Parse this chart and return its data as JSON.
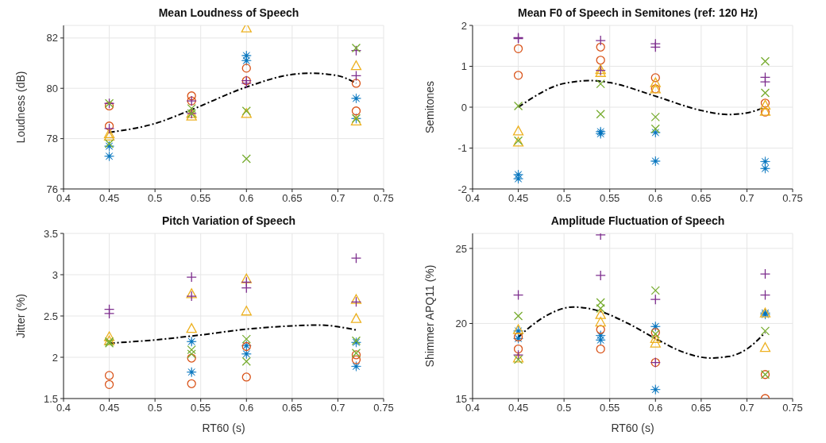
{
  "chart_data": [
    {
      "type": "scatter",
      "title": "Mean Loudness of Speech",
      "ylabel": "Loudness (dB)",
      "xlim": [
        0.4,
        0.75
      ],
      "xticks": [
        0.4,
        0.45,
        0.5,
        0.55,
        0.6,
        0.65,
        0.7,
        0.75
      ],
      "ylim": [
        76,
        82.5
      ],
      "yticks": [
        76,
        78,
        80,
        82
      ],
      "grid": true,
      "legend": false,
      "series": [
        {
          "color": "#0072bd",
          "marker": "star",
          "x": [
            0.45,
            0.45,
            0.6,
            0.6,
            0.72,
            0.72
          ],
          "values": [
            77.3,
            77.7,
            81.3,
            81.1,
            79.6,
            78.8
          ]
        },
        {
          "color": "#d95319",
          "marker": "circle",
          "x": [
            0.45,
            0.45,
            0.54,
            0.54,
            0.6,
            0.6,
            0.72,
            0.72
          ],
          "values": [
            79.3,
            78.5,
            79.7,
            79.5,
            80.8,
            80.3,
            80.2,
            79.1
          ]
        },
        {
          "color": "#edb120",
          "marker": "triangle",
          "x": [
            0.45,
            0.45,
            0.54,
            0.54,
            0.6,
            0.6,
            0.72,
            0.72
          ],
          "values": [
            78.2,
            78.1,
            78.9,
            79.0,
            82.4,
            79.0,
            80.9,
            78.7
          ]
        },
        {
          "color": "#7e2f8e",
          "marker": "cross",
          "x": [
            0.45,
            0.45,
            0.54,
            0.54,
            0.6,
            0.6,
            0.72,
            0.72
          ],
          "values": [
            79.4,
            78.4,
            79.5,
            79.0,
            80.3,
            80.2,
            81.5,
            80.5
          ]
        },
        {
          "color": "#77ac30",
          "marker": "x",
          "x": [
            0.45,
            0.45,
            0.54,
            0.54,
            0.6,
            0.6,
            0.72,
            0.72
          ],
          "values": [
            77.8,
            79.4,
            79.2,
            79.0,
            79.1,
            77.2,
            81.6,
            78.8
          ]
        },
        {
          "type": "line",
          "color": "#000000",
          "line_style": "dashed",
          "marker": "none",
          "x": [
            0.45,
            0.5,
            0.54,
            0.6,
            0.65,
            0.67,
            0.7,
            0.72
          ],
          "values": [
            78.25,
            78.6,
            79.15,
            80.05,
            80.55,
            80.6,
            80.5,
            80.2
          ]
        }
      ]
    },
    {
      "type": "scatter",
      "title": "Mean F0 of Speech in Semitones (ref: 120 Hz)",
      "ylabel": "Semitones",
      "xlim": [
        0.4,
        0.75
      ],
      "xticks": [
        0.4,
        0.45,
        0.5,
        0.55,
        0.6,
        0.65,
        0.7,
        0.75
      ],
      "ylim": [
        -2,
        2
      ],
      "yticks": [
        -2,
        -1,
        0,
        1,
        2
      ],
      "grid": true,
      "legend": false,
      "series": [
        {
          "color": "#0072bd",
          "marker": "star",
          "x": [
            0.45,
            0.45,
            0.54,
            0.54,
            0.6,
            0.6,
            0.72,
            0.72
          ],
          "values": [
            -1.65,
            -1.75,
            -0.6,
            -0.65,
            -0.62,
            -1.32,
            -1.33,
            -1.5
          ]
        },
        {
          "color": "#d95319",
          "marker": "circle",
          "x": [
            0.45,
            0.45,
            0.54,
            0.54,
            0.6,
            0.6,
            0.72,
            0.72
          ],
          "values": [
            1.43,
            0.78,
            1.47,
            1.15,
            0.72,
            0.45,
            0.1,
            -0.12
          ]
        },
        {
          "color": "#edb120",
          "marker": "triangle",
          "x": [
            0.45,
            0.45,
            0.54,
            0.54,
            0.6,
            0.6,
            0.72,
            0.72
          ],
          "values": [
            -0.58,
            -0.85,
            0.92,
            0.85,
            0.6,
            0.45,
            0.05,
            -0.1
          ]
        },
        {
          "color": "#7e2f8e",
          "marker": "cross",
          "x": [
            0.45,
            0.45,
            0.54,
            0.54,
            0.6,
            0.6,
            0.72,
            0.72
          ],
          "values": [
            1.7,
            1.68,
            1.63,
            0.9,
            1.55,
            1.47,
            0.73,
            0.62
          ]
        },
        {
          "color": "#77ac30",
          "marker": "x",
          "x": [
            0.45,
            0.45,
            0.54,
            0.54,
            0.6,
            0.6,
            0.72,
            0.72
          ],
          "values": [
            0.03,
            -0.82,
            0.57,
            -0.17,
            -0.24,
            -0.53,
            1.12,
            0.35
          ]
        },
        {
          "type": "line",
          "color": "#000000",
          "line_style": "dashed",
          "marker": "none",
          "x": [
            0.45,
            0.5,
            0.53,
            0.55,
            0.6,
            0.65,
            0.68,
            0.7,
            0.72
          ],
          "values": [
            0.0,
            0.58,
            0.65,
            0.6,
            0.27,
            -0.08,
            -0.18,
            -0.14,
            0.0
          ]
        }
      ]
    },
    {
      "type": "scatter",
      "title": "Pitch Variation of Speech",
      "xlabel": "RT60 (s)",
      "ylabel": "Jitter (%)",
      "xlim": [
        0.4,
        0.75
      ],
      "xticks": [
        0.4,
        0.45,
        0.5,
        0.55,
        0.6,
        0.65,
        0.7,
        0.75
      ],
      "ylim": [
        1.5,
        3.5
      ],
      "yticks": [
        1.5,
        2,
        2.5,
        3,
        3.5
      ],
      "grid": true,
      "legend": false,
      "series": [
        {
          "color": "#0072bd",
          "marker": "star",
          "x": [
            0.54,
            0.54,
            0.6,
            0.6,
            0.72,
            0.72
          ],
          "values": [
            2.19,
            1.82,
            2.14,
            2.04,
            2.18,
            1.89
          ]
        },
        {
          "color": "#d95319",
          "marker": "circle",
          "x": [
            0.45,
            0.45,
            0.54,
            0.54,
            0.6,
            0.6,
            0.72,
            0.72
          ],
          "values": [
            1.78,
            1.67,
            1.99,
            1.68,
            2.13,
            1.76,
            2.03,
            1.97
          ]
        },
        {
          "color": "#edb120",
          "marker": "triangle",
          "x": [
            0.45,
            0.45,
            0.54,
            0.54,
            0.6,
            0.6,
            0.72,
            0.72
          ],
          "values": [
            2.25,
            2.2,
            2.77,
            2.35,
            2.95,
            2.56,
            2.7,
            2.47
          ]
        },
        {
          "color": "#7e2f8e",
          "marker": "cross",
          "x": [
            0.45,
            0.45,
            0.54,
            0.54,
            0.6,
            0.6,
            0.72,
            0.72
          ],
          "values": [
            2.58,
            2.53,
            2.97,
            2.74,
            2.91,
            2.84,
            3.2,
            2.67
          ]
        },
        {
          "color": "#77ac30",
          "marker": "x",
          "x": [
            0.45,
            0.45,
            0.54,
            0.54,
            0.6,
            0.6,
            0.72,
            0.72
          ],
          "values": [
            2.17,
            2.19,
            2.09,
            2.04,
            2.22,
            1.95,
            2.2,
            2.05
          ]
        },
        {
          "type": "line",
          "color": "#000000",
          "line_style": "dashed",
          "marker": "none",
          "x": [
            0.45,
            0.5,
            0.55,
            0.6,
            0.65,
            0.68,
            0.7,
            0.72
          ],
          "values": [
            2.17,
            2.21,
            2.27,
            2.34,
            2.38,
            2.39,
            2.37,
            2.33
          ]
        }
      ]
    },
    {
      "type": "scatter",
      "title": "Amplitude Fluctuation of Speech",
      "xlabel": "RT60 (s)",
      "ylabel": "Shimmer APQ11 (%)",
      "xlim": [
        0.4,
        0.75
      ],
      "xticks": [
        0.4,
        0.45,
        0.5,
        0.55,
        0.6,
        0.65,
        0.7,
        0.75
      ],
      "ylim": [
        15,
        26
      ],
      "yticks": [
        15,
        20,
        25
      ],
      "grid": true,
      "legend": false,
      "series": [
        {
          "color": "#0072bd",
          "marker": "star",
          "x": [
            0.45,
            0.45,
            0.54,
            0.54,
            0.6,
            0.6,
            0.72,
            0.72
          ],
          "values": [
            19.5,
            19.0,
            19.2,
            18.9,
            19.8,
            15.6,
            20.7,
            20.6
          ]
        },
        {
          "color": "#d95319",
          "marker": "circle",
          "x": [
            0.45,
            0.45,
            0.54,
            0.54,
            0.6,
            0.6,
            0.72,
            0.72
          ],
          "values": [
            19.1,
            18.3,
            19.6,
            18.3,
            19.4,
            17.4,
            16.6,
            15.0
          ]
        },
        {
          "color": "#edb120",
          "marker": "triangle",
          "x": [
            0.45,
            0.45,
            0.54,
            0.54,
            0.6,
            0.6,
            0.72,
            0.72
          ],
          "values": [
            19.6,
            17.7,
            20.6,
            20.1,
            19.0,
            18.7,
            20.7,
            18.4
          ]
        },
        {
          "color": "#7e2f8e",
          "marker": "cross",
          "x": [
            0.45,
            0.45,
            0.54,
            0.54,
            0.6,
            0.6,
            0.72,
            0.72
          ],
          "values": [
            21.9,
            17.9,
            25.9,
            23.2,
            21.6,
            17.4,
            23.3,
            21.9
          ]
        },
        {
          "color": "#77ac30",
          "marker": "x",
          "x": [
            0.45,
            0.45,
            0.54,
            0.54,
            0.6,
            0.6,
            0.72,
            0.72
          ],
          "values": [
            20.5,
            17.6,
            21.4,
            21.0,
            22.2,
            19.3,
            19.5,
            16.6
          ]
        },
        {
          "type": "line",
          "color": "#000000",
          "line_style": "dashed",
          "marker": "none",
          "x": [
            0.45,
            0.48,
            0.51,
            0.54,
            0.57,
            0.6,
            0.63,
            0.66,
            0.68,
            0.7,
            0.72
          ],
          "values": [
            19.1,
            20.5,
            21.1,
            20.8,
            20.0,
            19.0,
            18.1,
            17.7,
            17.8,
            18.3,
            19.4
          ]
        }
      ]
    }
  ]
}
